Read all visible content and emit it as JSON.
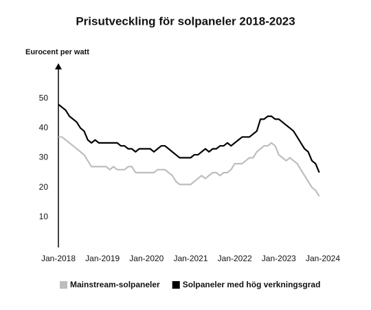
{
  "chart_data": {
    "type": "line",
    "title": "Prisutveckling för solpaneler 2018-2023",
    "y_label": "Eurocent per watt",
    "x": [
      "2018-01",
      "2018-02",
      "2018-03",
      "2018-04",
      "2018-05",
      "2018-06",
      "2018-07",
      "2018-08",
      "2018-09",
      "2018-10",
      "2018-11",
      "2018-12",
      "2019-01",
      "2019-02",
      "2019-03",
      "2019-04",
      "2019-05",
      "2019-06",
      "2019-07",
      "2019-08",
      "2019-09",
      "2019-10",
      "2019-11",
      "2019-12",
      "2020-01",
      "2020-02",
      "2020-03",
      "2020-04",
      "2020-05",
      "2020-06",
      "2020-07",
      "2020-08",
      "2020-09",
      "2020-10",
      "2020-11",
      "2020-12",
      "2021-01",
      "2021-02",
      "2021-03",
      "2021-04",
      "2021-05",
      "2021-06",
      "2021-07",
      "2021-08",
      "2021-09",
      "2021-10",
      "2021-11",
      "2021-12",
      "2022-01",
      "2022-02",
      "2022-03",
      "2022-04",
      "2022-05",
      "2022-06",
      "2022-07",
      "2022-08",
      "2022-09",
      "2022-10",
      "2022-11",
      "2022-12",
      "2023-01",
      "2023-02",
      "2023-03",
      "2023-04",
      "2023-05",
      "2023-06",
      "2023-07",
      "2023-08",
      "2023-09",
      "2023-10",
      "2023-11",
      "2023-12"
    ],
    "series": [
      {
        "name": "Mainstream-solpaneler",
        "color": "#bdbdbd",
        "values": [
          37,
          37,
          36,
          35,
          34,
          33,
          32,
          31,
          29,
          27,
          27,
          27,
          27,
          27,
          26,
          27,
          26,
          26,
          26,
          27,
          27,
          25,
          25,
          25,
          25,
          25,
          25,
          26,
          26,
          26,
          25,
          24,
          22,
          21,
          21,
          21,
          21,
          22,
          23,
          24,
          23,
          24,
          25,
          25,
          24,
          25,
          25,
          26,
          28,
          28,
          28,
          29,
          30,
          30,
          32,
          33,
          34,
          34,
          35,
          34,
          31,
          30,
          29,
          30,
          29,
          28,
          26,
          24,
          22,
          20,
          19,
          17
        ]
      },
      {
        "name": "Solpaneler med hög verkningsgrad",
        "color": "#000000",
        "values": [
          48,
          47,
          46,
          44,
          43,
          42,
          40,
          39,
          36,
          35,
          36,
          35,
          35,
          35,
          35,
          35,
          35,
          34,
          34,
          33,
          33,
          32,
          33,
          33,
          33,
          33,
          32,
          33,
          34,
          34,
          33,
          32,
          31,
          30,
          30,
          30,
          30,
          31,
          31,
          32,
          33,
          32,
          33,
          33,
          34,
          34,
          35,
          34,
          35,
          36,
          37,
          37,
          37,
          38,
          39,
          43,
          43,
          44,
          44,
          43,
          43,
          42,
          41,
          40,
          39,
          37,
          35,
          33,
          32,
          29,
          28,
          25
        ]
      }
    ],
    "xlim": [
      "2018-01",
      "2024-01"
    ],
    "xticks": [
      {
        "value": "2018-01",
        "label": "Jan-2018"
      },
      {
        "value": "2019-01",
        "label": "Jan-2019"
      },
      {
        "value": "2020-01",
        "label": "Jan-2020"
      },
      {
        "value": "2021-01",
        "label": "Jan-2021"
      },
      {
        "value": "2022-01",
        "label": "Jan-2022"
      },
      {
        "value": "2023-01",
        "label": "Jan-2023"
      },
      {
        "value": "2024-01",
        "label": "Jan-2024"
      }
    ],
    "ylim": [
      0,
      60
    ],
    "yticks": [
      10,
      20,
      30,
      40,
      50
    ],
    "grid": false,
    "legend": "bottom"
  }
}
